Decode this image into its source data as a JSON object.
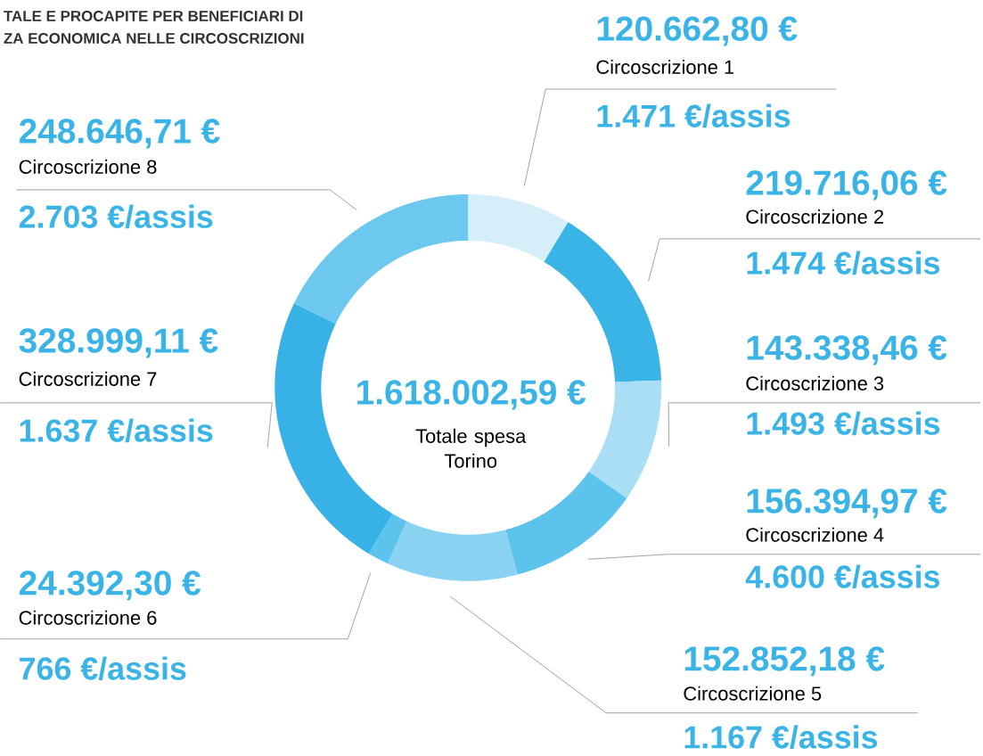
{
  "chart_data": {
    "type": "donut",
    "title": "TALE E PROCAPITE PER BENEFICIARI DI",
    "subtitle": "ZA ECONOMICA NELLE CIRCOSCRIZIONI",
    "categories": [
      "Circoscrizione 1",
      "Circoscrizione 2",
      "Circoscrizione 3",
      "Circoscrizione 4",
      "Circoscrizione 5",
      "Circoscrizione 6",
      "Circoscrizione 7",
      "Circoscrizione 8"
    ],
    "values": [
      120662.8,
      219716.06,
      143338.46,
      156394.97,
      152852.18,
      24392.3,
      328999.11,
      248646.71
    ],
    "colors": [
      "#d6eef9",
      "#3ab4e6",
      "#a9def4",
      "#5cc3ed",
      "#8ad2f1",
      "#5cc3ed",
      "#38b2e6",
      "#6cc8ee"
    ],
    "value_labels": [
      "120.662,80 €",
      "219.716,06 €",
      "143.338,46 €",
      "156.394,97 €",
      "152.852,18 €",
      "24.392,30 €",
      "328.999,11 €",
      "248.646,71 €"
    ],
    "annotations": [
      "1.471 €/assis",
      "1.474 €/assis",
      "1.493 €/assis",
      "4.600 €/assis",
      "1.167 €/assis",
      "766 €/assis",
      "1.637 €/assis",
      "2.703 €/assis",
      "1.618.002,59 €",
      "Totale spesa Torino"
    ]
  }
}
